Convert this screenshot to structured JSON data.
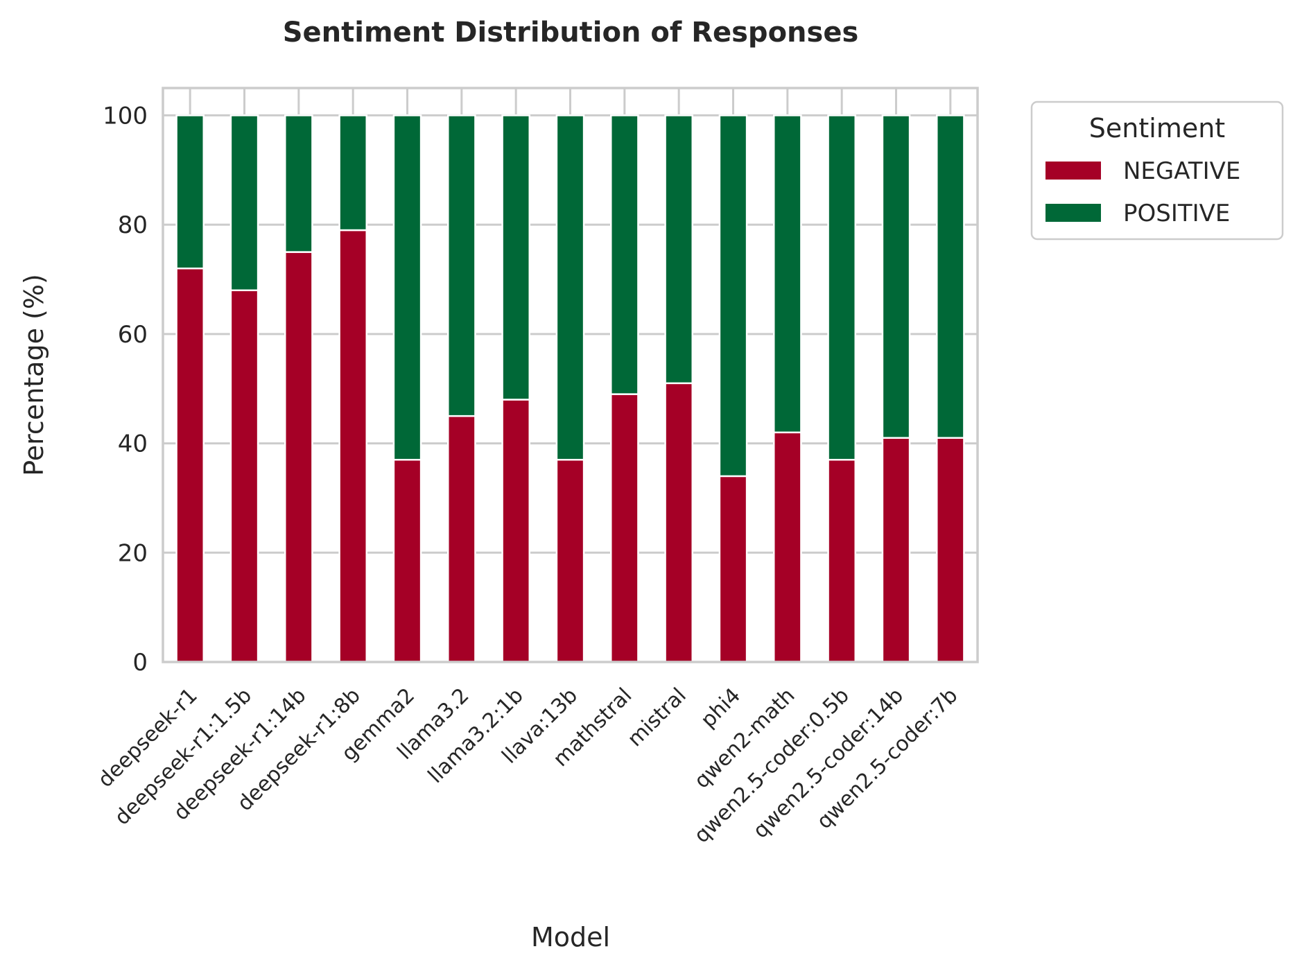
{
  "chart_data": {
    "type": "bar",
    "stacked": true,
    "title": "Sentiment Distribution of Responses",
    "xlabel": "Model",
    "ylabel": "Percentage (%)",
    "ylim": [
      0,
      105
    ],
    "yticks": [
      0,
      20,
      40,
      60,
      80,
      100
    ],
    "grid": true,
    "legend": {
      "title": "Sentiment",
      "placement": "outside-top-right"
    },
    "categories": [
      "deepseek-r1",
      "deepseek-r1:1.5b",
      "deepseek-r1:14b",
      "deepseek-r1:8b",
      "gemma2",
      "llama3.2",
      "llama3.2:1b",
      "llava:13b",
      "mathstral",
      "mistral",
      "phi4",
      "qwen2-math",
      "qwen2.5-coder:0.5b",
      "qwen2.5-coder:14b",
      "qwen2.5-coder:7b"
    ],
    "series": [
      {
        "name": "NEGATIVE",
        "color": "#a50026",
        "values": [
          72,
          68,
          75,
          79,
          37,
          45,
          48,
          37,
          49,
          51,
          34,
          42,
          37,
          41,
          41
        ]
      },
      {
        "name": "POSITIVE",
        "color": "#006837",
        "values": [
          28,
          32,
          25,
          21,
          63,
          55,
          52,
          63,
          51,
          49,
          66,
          58,
          63,
          59,
          59
        ]
      }
    ],
    "colors": {
      "grid": "#cccccc",
      "frame": "#cccccc",
      "text": "#262626",
      "background": "#ffffff"
    }
  }
}
